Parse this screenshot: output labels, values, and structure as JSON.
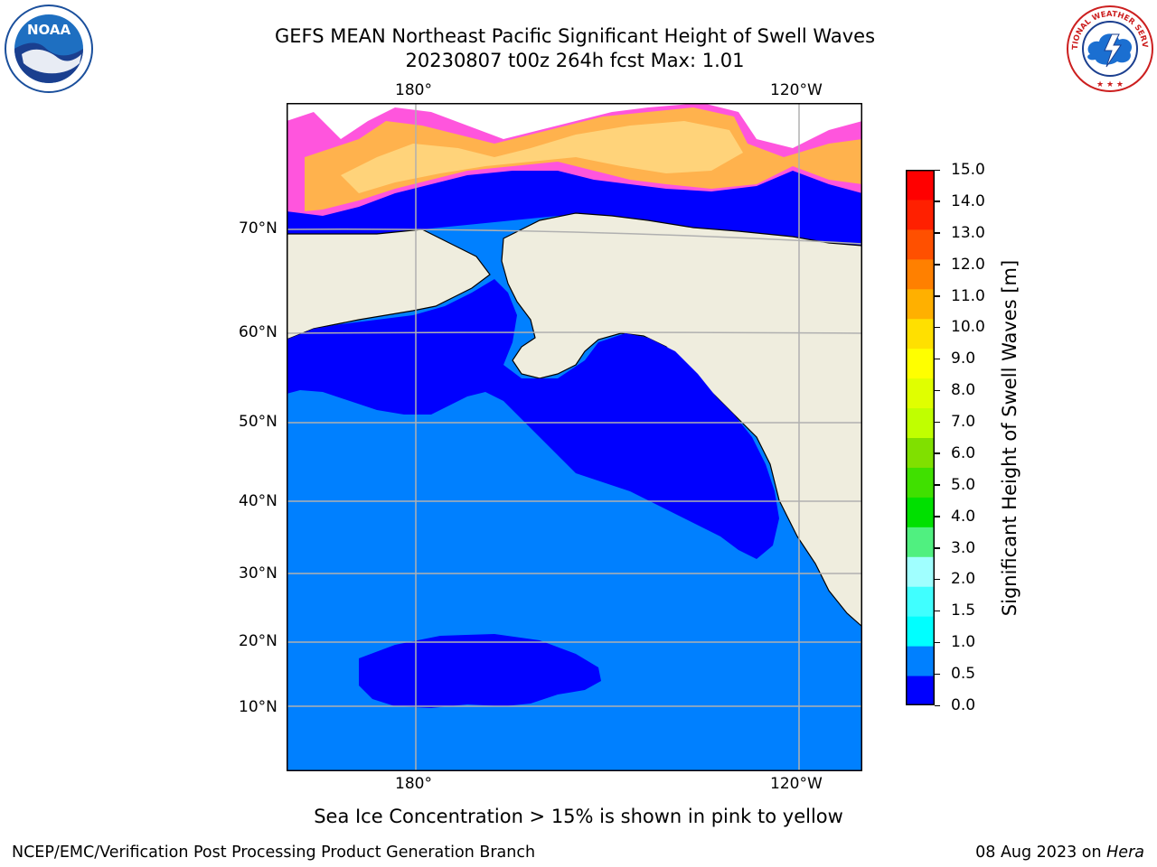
{
  "title": {
    "line1": "GEFS MEAN Northeast Pacific Significant Height of Swell Waves",
    "line2": "20230807 t00z 264h fcst   Max: 1.01"
  },
  "map": {
    "lon_labels_top": [
      "180°",
      "120°W"
    ],
    "lon_labels_bottom": [
      "180°",
      "120°W"
    ],
    "lat_labels": [
      "70°N",
      "60°N",
      "50°N",
      "40°N",
      "30°N",
      "20°N",
      "10°N"
    ],
    "colors": {
      "open_ocean": "#0080ff",
      "swell_low": "#0000ff",
      "land": "#efedde",
      "ice_pink": "#ff55dd",
      "ice_orange": "#ffb24d",
      "ice_yellow": "#ffd37a",
      "gridline": "#b0b0b0"
    }
  },
  "colorbar": {
    "title": "Significant Height of Swell Waves [m]",
    "levels": [
      "0.0",
      "0.5",
      "1.0",
      "1.5",
      "2.0",
      "3.0",
      "4.0",
      "5.0",
      "6.0",
      "7.0",
      "8.0",
      "9.0",
      "10.0",
      "11.0",
      "12.0",
      "13.0",
      "14.0",
      "15.0"
    ],
    "colors": [
      "#0000ff",
      "#0080ff",
      "#00ffff",
      "#40ffff",
      "#a0ffff",
      "#50f080",
      "#00e000",
      "#40e000",
      "#80e000",
      "#c0ff00",
      "#e0ff00",
      "#ffff00",
      "#ffe000",
      "#ffb000",
      "#ff8000",
      "#ff5000",
      "#ff2000",
      "#ff0000"
    ]
  },
  "note": "Sea Ice Concentration > 15% is shown in pink to yellow",
  "footer": {
    "left": "NCEP/EMC/Verification Post Processing Product Generation Branch",
    "right_date": "08 Aug 2023 on ",
    "right_machine": "Hera"
  },
  "logos": {
    "noaa": {
      "text": "NOAA",
      "icon": "noaa-logo-icon"
    },
    "nws": {
      "text": "NATIONAL WEATHER SERVICE",
      "icon": "nws-logo-icon"
    }
  }
}
